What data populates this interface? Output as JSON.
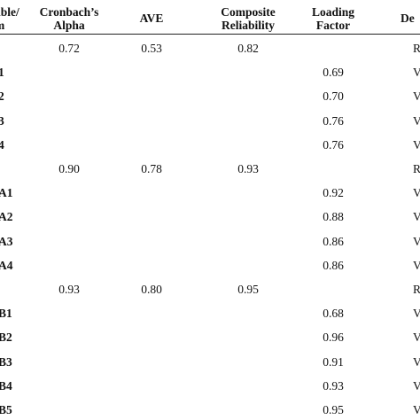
{
  "table": {
    "header": {
      "variable_item_line1": "able/",
      "variable_item_line2": "m",
      "cronbach_line1": "Cronbach’s",
      "cronbach_line2": "Alpha",
      "ave": "AVE",
      "composite_line1": "Composite",
      "composite_line2": "Reliability",
      "loading_line1": "Loading",
      "loading_line2": "Factor",
      "decision": "De"
    },
    "rows": [
      {
        "item": "",
        "cronbach": "0.72",
        "ave": "0.53",
        "composite": "0.82",
        "loading": "",
        "decision": "Re"
      },
      {
        "item": "1",
        "cronbach": "",
        "ave": "",
        "composite": "",
        "loading": "0.69",
        "decision": "V"
      },
      {
        "item": "2",
        "cronbach": "",
        "ave": "",
        "composite": "",
        "loading": "0.70",
        "decision": "V"
      },
      {
        "item": "3",
        "cronbach": "",
        "ave": "",
        "composite": "",
        "loading": "0.76",
        "decision": "V"
      },
      {
        "item": "4",
        "cronbach": "",
        "ave": "",
        "composite": "",
        "loading": "0.76",
        "decision": "V"
      },
      {
        "item": "",
        "cronbach": "0.90",
        "ave": "0.78",
        "composite": "0.93",
        "loading": "",
        "decision": "Re"
      },
      {
        "item": "A1",
        "cronbach": "",
        "ave": "",
        "composite": "",
        "loading": "0.92",
        "decision": "V"
      },
      {
        "item": "A2",
        "cronbach": "",
        "ave": "",
        "composite": "",
        "loading": "0.88",
        "decision": "V"
      },
      {
        "item": "A3",
        "cronbach": "",
        "ave": "",
        "composite": "",
        "loading": "0.86",
        "decision": "V"
      },
      {
        "item": "A4",
        "cronbach": "",
        "ave": "",
        "composite": "",
        "loading": "0.86",
        "decision": "V"
      },
      {
        "item": "",
        "cronbach": "0.93",
        "ave": "0.80",
        "composite": "0.95",
        "loading": "",
        "decision": "Re"
      },
      {
        "item": "B1",
        "cronbach": "",
        "ave": "",
        "composite": "",
        "loading": "0.68",
        "decision": "V"
      },
      {
        "item": "B2",
        "cronbach": "",
        "ave": "",
        "composite": "",
        "loading": "0.96",
        "decision": "V"
      },
      {
        "item": "B3",
        "cronbach": "",
        "ave": "",
        "composite": "",
        "loading": "0.91",
        "decision": "V"
      },
      {
        "item": "B4",
        "cronbach": "",
        "ave": "",
        "composite": "",
        "loading": "0.93",
        "decision": "V"
      },
      {
        "item": "B5",
        "cronbach": "",
        "ave": "",
        "composite": "",
        "loading": "0.95",
        "decision": "V"
      }
    ]
  }
}
